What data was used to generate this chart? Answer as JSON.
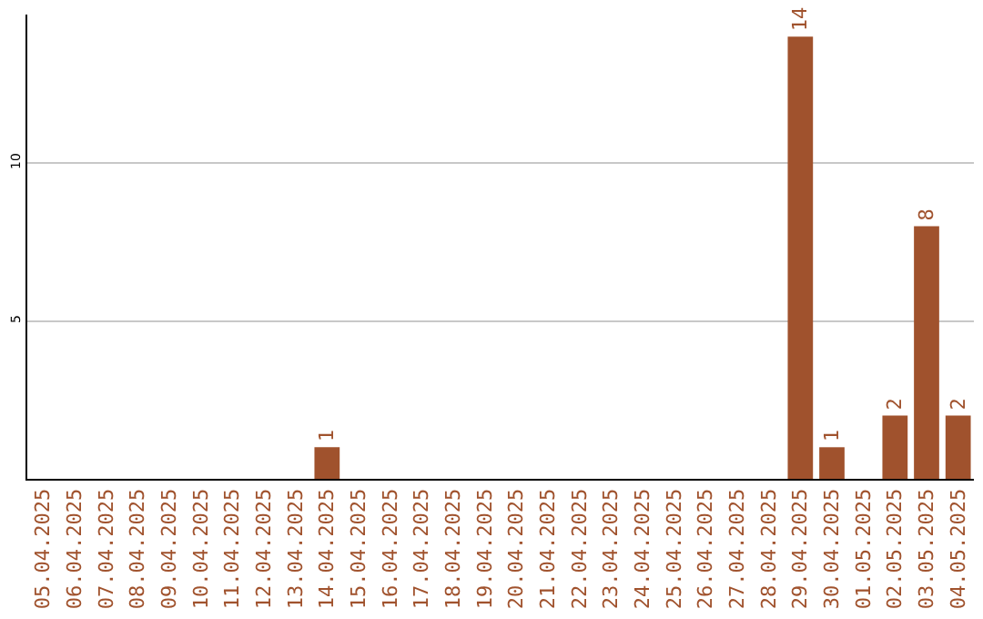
{
  "chart_data": {
    "type": "bar",
    "categories": [
      "05.04.2025",
      "06.04.2025",
      "07.04.2025",
      "08.04.2025",
      "09.04.2025",
      "10.04.2025",
      "11.04.2025",
      "12.04.2025",
      "13.04.2025",
      "14.04.2025",
      "15.04.2025",
      "16.04.2025",
      "17.04.2025",
      "18.04.2025",
      "19.04.2025",
      "20.04.2025",
      "21.04.2025",
      "22.04.2025",
      "23.04.2025",
      "24.04.2025",
      "25.04.2025",
      "26.04.2025",
      "27.04.2025",
      "28.04.2025",
      "29.04.2025",
      "30.04.2025",
      "01.05.2025",
      "02.05.2025",
      "03.05.2025",
      "04.05.2025"
    ],
    "values": [
      0,
      0,
      0,
      0,
      0,
      0,
      0,
      0,
      0,
      1,
      0,
      0,
      0,
      0,
      0,
      0,
      0,
      0,
      0,
      0,
      0,
      0,
      0,
      0,
      14,
      1,
      0,
      2,
      8,
      2
    ],
    "value_labels": [
      null,
      null,
      null,
      null,
      null,
      null,
      null,
      null,
      null,
      "1",
      null,
      null,
      null,
      null,
      null,
      null,
      null,
      null,
      null,
      null,
      null,
      null,
      null,
      null,
      "14",
      "1",
      null,
      "2",
      "8",
      "2"
    ],
    "color": "#a0522d",
    "ylim": [
      0,
      14.7
    ],
    "yticks": [
      5,
      10
    ],
    "grid": "y",
    "legend": false
  }
}
